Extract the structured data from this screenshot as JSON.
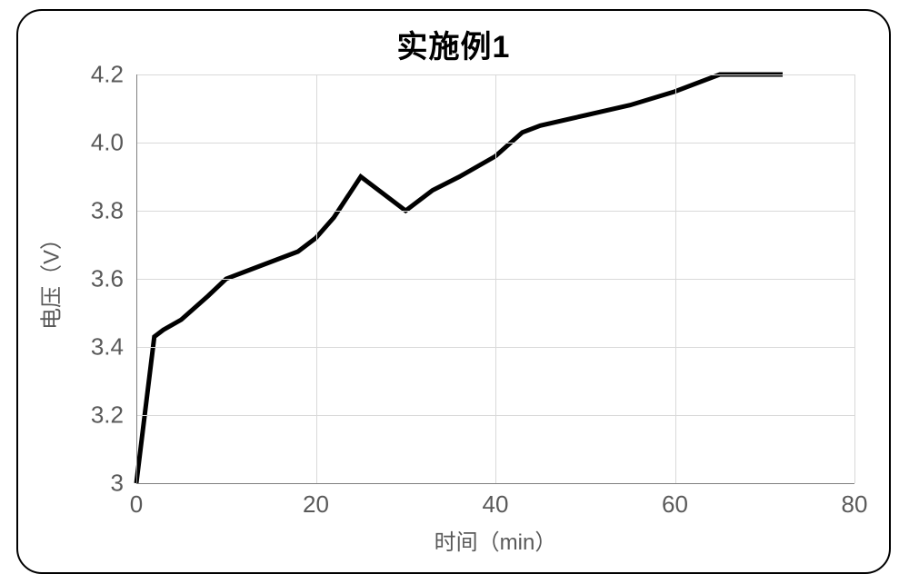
{
  "chart": {
    "type": "line",
    "title": "实施例1",
    "title_fontsize": 34,
    "title_fontweight": 900,
    "title_color": "#000000",
    "xlabel": "时间（min）",
    "ylabel": "电压（V）",
    "label_fontsize": 24,
    "label_color": "#595959",
    "tick_fontsize": 26,
    "tick_color": "#595959",
    "xlim": [
      0,
      80
    ],
    "ylim": [
      3.0,
      4.2
    ],
    "xticks": [
      0,
      20,
      40,
      60,
      80
    ],
    "yticks": [
      3.0,
      3.2,
      3.4,
      3.6,
      3.8,
      4.0,
      4.2
    ],
    "ytick_labels": [
      "3",
      "3.2",
      "3.4",
      "3.6",
      "3.8",
      "4.0",
      "4.2"
    ],
    "xtick_labels": [
      "0",
      "20",
      "40",
      "60",
      "80"
    ],
    "grid_color": "#d9d9d9",
    "grid_width": 1,
    "baseline_color": "#808080",
    "background_color": "#ffffff",
    "series": {
      "x": [
        0,
        2,
        3,
        5,
        8,
        10,
        12,
        15,
        18,
        20,
        22,
        25,
        30,
        33,
        36,
        40,
        43,
        45,
        50,
        55,
        60,
        65,
        68,
        72
      ],
      "y": [
        3.0,
        3.43,
        3.45,
        3.48,
        3.55,
        3.6,
        3.62,
        3.65,
        3.68,
        3.72,
        3.78,
        3.9,
        3.8,
        3.86,
        3.9,
        3.96,
        4.03,
        4.05,
        4.08,
        4.11,
        4.15,
        4.2,
        4.2,
        4.2
      ],
      "color": "#000000",
      "line_width": 5
    }
  }
}
